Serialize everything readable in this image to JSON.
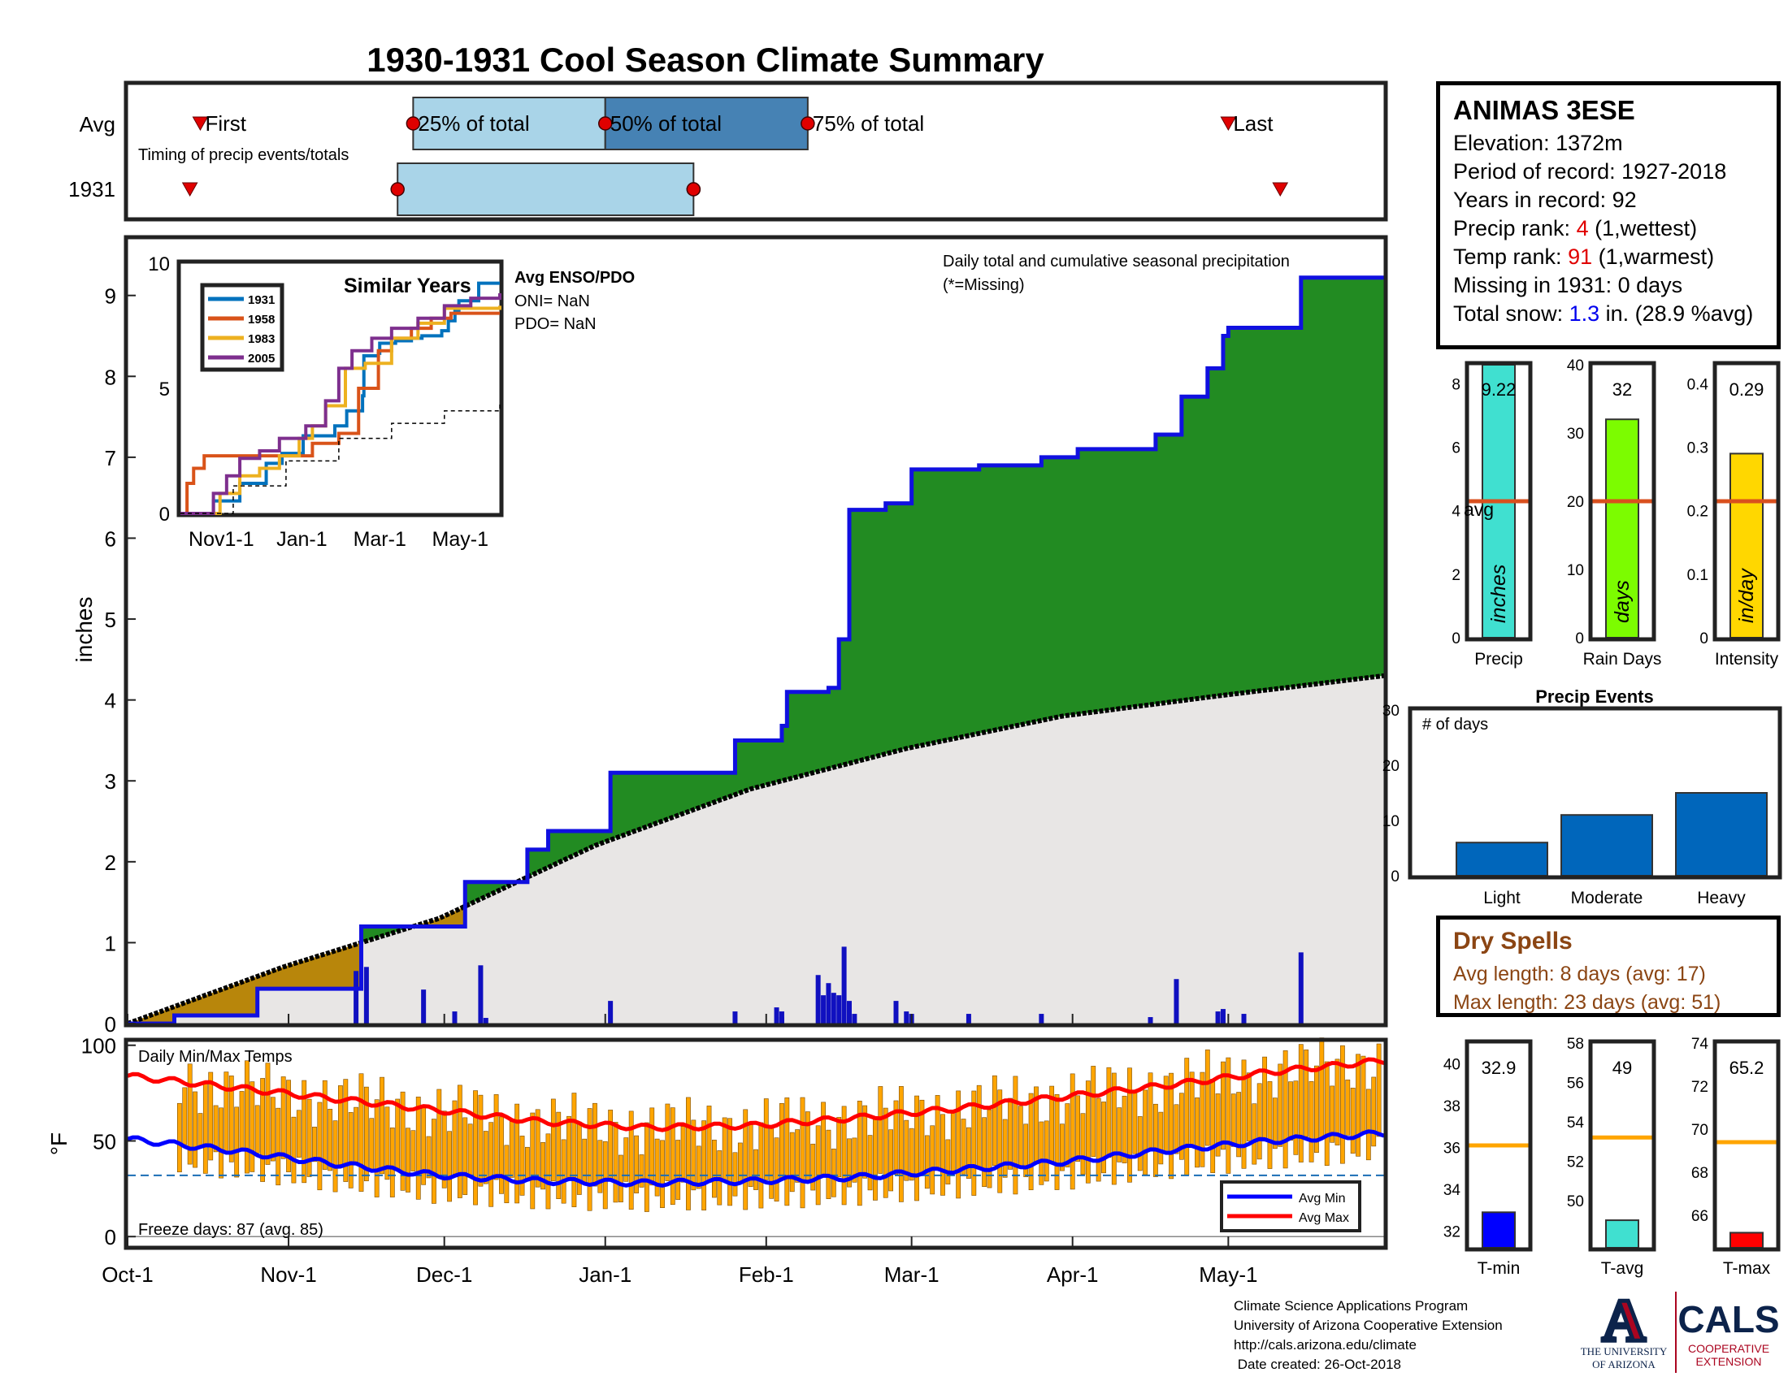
{
  "title": "1930-1931 Cool Season Climate Summary",
  "timing": {
    "row_labels": [
      "Avg",
      "1931"
    ],
    "caption": "Timing of precip events/totals",
    "labels": {
      "first": "First",
      "q25": "25% of total",
      "q50": "50% of total",
      "q75": "75% of total",
      "last": "Last"
    },
    "avg_days": {
      "first": 14,
      "q25": 55,
      "q50": 92,
      "q75": 131,
      "last": 212
    },
    "year_days": {
      "first": 12,
      "q25": 52,
      "q50": 109,
      "q75": 109,
      "last": 222
    }
  },
  "station": {
    "name": "ANIMAS 3ESE",
    "elevation": "Elevation: 1372m",
    "period": "Period of record: 1927-2018",
    "years": "Years in record: 92",
    "precip_rank_label": "Precip rank: ",
    "precip_rank": "4",
    "precip_rank_note": " (1,wettest)",
    "temp_rank_label": "Temp rank: ",
    "temp_rank": "91",
    "temp_rank_note": " (1,warmest)",
    "missing": "Missing in 1931: 0 days",
    "snow_label": "Total snow: ",
    "snow_value": "1.3",
    "snow_note": " in. (28.9 %avg)"
  },
  "main_chart": {
    "ylabel": "inches",
    "caption": "Daily total and cumulative seasonal precipitation",
    "missing_note": "(*=Missing)",
    "x_ticks": [
      "Oct-1",
      "Nov-1",
      "Dec-1",
      "Jan-1",
      "Feb-1",
      "Mar-1",
      "Apr-1",
      "May-1"
    ],
    "x_tick_days": [
      0,
      31,
      61,
      92,
      123,
      151,
      182,
      212
    ],
    "y_ticks": [
      0,
      1,
      2,
      3,
      4,
      5,
      6,
      7,
      8,
      9
    ],
    "ylim": [
      0,
      9.7
    ],
    "days_total": 242
  },
  "chart_data": [
    {
      "type": "area",
      "title": "",
      "series": [
        {
          "name": "",
          "x_days": [
            0,
            8,
            9,
            24,
            25,
            44,
            45,
            64,
            65,
            76,
            77,
            80,
            81,
            92,
            93,
            116,
            117,
            125,
            126,
            126,
            127,
            134,
            135,
            136,
            137,
            138,
            139,
            145,
            146,
            150,
            151,
            163,
            164,
            175,
            176,
            182,
            183,
            197,
            198,
            202,
            203,
            207,
            208,
            210,
            211,
            211,
            212,
            225,
            226,
            242
          ],
          "values": [
            0,
            0,
            0.1,
            0.1,
            0.43,
            0.43,
            1.2,
            1.2,
            1.75,
            1.75,
            2.15,
            2.15,
            2.38,
            2.38,
            3.1,
            3.1,
            3.5,
            3.5,
            3.68,
            3.68,
            4.1,
            4.1,
            4.15,
            4.15,
            4.75,
            4.75,
            6.35,
            6.35,
            6.43,
            6.43,
            6.85,
            6.85,
            6.9,
            6.9,
            7.0,
            7.0,
            7.1,
            7.1,
            7.28,
            7.28,
            7.75,
            7.75,
            8.1,
            8.1,
            8.5,
            8.5,
            8.6,
            8.6,
            9.22,
            9.22
          ]
        },
        {
          "name": "",
          "x_days": [
            0,
            30,
            60,
            90,
            120,
            150,
            180,
            210,
            242
          ],
          "values": [
            0,
            0.7,
            1.3,
            2.2,
            2.9,
            3.4,
            3.8,
            4.05,
            4.3
          ]
        }
      ],
      "daily_precip": {
        "x_days": [
          44,
          46,
          57,
          63,
          68,
          69,
          93,
          117,
          125,
          126,
          126,
          133,
          134,
          135,
          136,
          137,
          138,
          139,
          140,
          148,
          150,
          151,
          162,
          176,
          197,
          202,
          210,
          211,
          215,
          226
        ],
        "values": [
          0.65,
          0.7,
          0.42,
          0.15,
          0.72,
          0.07,
          0.28,
          0.15,
          0.2,
          0.15,
          0.08,
          0.6,
          0.35,
          0.5,
          0.38,
          0.35,
          0.95,
          0.28,
          0.12,
          0.28,
          0.15,
          0.12,
          0.12,
          0.12,
          0.08,
          0.55,
          0.15,
          0.18,
          0.12,
          0.88
        ]
      }
    },
    {
      "type": "line",
      "title": "Similar Years",
      "x_ticks": [
        "Nov1-1",
        "Jan-1",
        "Mar-1",
        "May-1"
      ],
      "x_tick_days": [
        31,
        92,
        151,
        212
      ],
      "y_ticks": [
        0,
        5,
        10
      ],
      "ylim": [
        0,
        10
      ],
      "series": [
        {
          "name": "1931",
          "color": "#0072BD",
          "x_days": [
            0,
            24,
            25,
            44,
            45,
            64,
            65,
            76,
            77,
            93,
            117,
            126,
            138,
            139,
            150,
            151,
            163,
            175,
            183,
            198,
            203,
            208,
            211,
            226,
            242
          ],
          "values": [
            0,
            0,
            0.5,
            0.5,
            1.2,
            1.2,
            2.0,
            2.0,
            2.4,
            3.1,
            3.5,
            4.1,
            4.7,
            6.3,
            6.4,
            6.8,
            6.9,
            7.0,
            7.1,
            7.3,
            7.7,
            8.1,
            8.5,
            9.2,
            9.2
          ]
        },
        {
          "name": "1958",
          "color": "#D95319",
          "x_days": [
            0,
            5,
            10,
            18,
            40,
            70,
            100,
            120,
            135,
            150,
            160,
            175,
            190,
            205,
            242
          ],
          "values": [
            0,
            1.2,
            1.8,
            2.3,
            2.3,
            2.3,
            2.8,
            3.2,
            5.0,
            6.5,
            7.0,
            7.4,
            7.8,
            8.0,
            8.0
          ]
        },
        {
          "name": "1983",
          "color": "#EDB120",
          "x_days": [
            0,
            20,
            30,
            45,
            60,
            75,
            90,
            100,
            110,
            125,
            140,
            160,
            180,
            200,
            242
          ],
          "values": [
            0,
            0,
            0.8,
            1.5,
            1.8,
            2.3,
            3.0,
            3.5,
            4.3,
            5.8,
            6.0,
            7.0,
            7.6,
            8.2,
            8.3
          ]
        },
        {
          "name": "2005",
          "color": "#7E2F8E",
          "x_days": [
            0,
            12,
            25,
            35,
            45,
            60,
            75,
            95,
            110,
            120,
            130,
            145,
            160,
            180,
            200,
            220,
            242
          ],
          "values": [
            0,
            0,
            0.8,
            1.5,
            2.2,
            2.5,
            3.0,
            3.5,
            4.5,
            5.8,
            6.5,
            7.0,
            7.4,
            7.8,
            8.3,
            8.6,
            8.8
          ]
        },
        {
          "name": "",
          "color": "#000000",
          "x_days": [
            0,
            40,
            80,
            120,
            160,
            200,
            242
          ],
          "values": [
            0,
            1.1,
            2.1,
            3.0,
            3.6,
            4.1,
            4.4
          ]
        }
      ]
    },
    {
      "type": "bar",
      "title": "",
      "categories": [
        "Precip",
        "Rain Days",
        "Intensity"
      ],
      "values": [
        9.22,
        32,
        0.29
      ],
      "value_labels": [
        "9.22",
        "32",
        "0.29"
      ],
      "averages": [
        4.3,
        20,
        0.215
      ],
      "units": [
        "inches",
        "days",
        "in/day"
      ],
      "ylims": [
        [
          0,
          8.6
        ],
        [
          0,
          40
        ],
        [
          0,
          0.43
        ]
      ],
      "y_ticks": [
        [
          0,
          2,
          4,
          6,
          8
        ],
        [
          0,
          10,
          20,
          30,
          40
        ],
        [
          0,
          0.1,
          0.2,
          0.3,
          0.4
        ]
      ],
      "y_tick_labels": [
        [
          "0",
          "2",
          "4",
          "6",
          "8"
        ],
        [
          "0",
          "10",
          "20",
          "30",
          "40"
        ],
        [
          "0",
          "0.1",
          "0.2",
          "0.3",
          "0.4"
        ]
      ],
      "colors": [
        "#40E0D0",
        "#7CFC00",
        "#FFD700"
      ],
      "avg_label": "avg"
    },
    {
      "type": "bar",
      "title": "Precip Events",
      "ylabel": "# of days",
      "categories": [
        "Light",
        "Moderate",
        "Heavy"
      ],
      "values": [
        6,
        11,
        15
      ],
      "ylim": [
        0,
        30
      ],
      "y_ticks": [
        0,
        10,
        20,
        30
      ]
    },
    {
      "type": "bar",
      "title": "Daily Min/Max Temps",
      "ylabel": "°F",
      "ylim": [
        -5,
        102
      ],
      "y_ticks": [
        0,
        50,
        100
      ],
      "freeze_line": 32,
      "legend": [
        "Avg Min",
        "Avg Max"
      ],
      "avg_max": {
        "x_days": [
          0,
          20,
          40,
          60,
          80,
          100,
          120,
          140,
          160,
          180,
          200,
          220,
          242
        ],
        "values": [
          84,
          78,
          72,
          66,
          60,
          57,
          58,
          62,
          67,
          73,
          79,
          86,
          92
        ]
      },
      "avg_min": {
        "x_days": [
          0,
          20,
          40,
          60,
          80,
          100,
          120,
          140,
          160,
          180,
          200,
          220,
          242
        ],
        "values": [
          51,
          45,
          38,
          32,
          29,
          28,
          29,
          31,
          35,
          39,
          45,
          50,
          54
        ]
      }
    },
    {
      "type": "bar",
      "title": "",
      "categories": [
        "T-min",
        "T-avg",
        "T-max"
      ],
      "values": [
        32.9,
        49,
        65.2
      ],
      "value_labels": [
        "32.9",
        "49",
        "65.2"
      ],
      "averages": [
        36.1,
        53.2,
        69.4
      ],
      "ylims": [
        [
          31.2,
          41
        ],
        [
          47.6,
          58
        ],
        [
          64.5,
          74
        ]
      ],
      "y_ticks": [
        [
          32,
          34,
          36,
          38,
          40
        ],
        [
          50,
          52,
          54,
          56,
          58
        ],
        [
          66,
          68,
          70,
          72,
          74
        ]
      ],
      "colors": [
        "#0000FF",
        "#40E0D0",
        "#FF0000"
      ]
    }
  ],
  "temps_freeze": "Freeze days: 87 (avg. 85)",
  "dry_spells": {
    "title": "Dry Spells",
    "avg": "Avg length: 8 days (avg: 17)",
    "max": "Max length: 23 days (avg: 51)"
  },
  "footer": {
    "line1": "Climate Science Applications Program",
    "line2": "University of Arizona Cooperative Extension",
    "line3": "http://cals.arizona.edu/climate",
    "line4": " Date created: 26-Oct-2018"
  },
  "logos": {
    "ua_letter": "A",
    "ua_line1": "THE UNIVERSITY",
    "ua_line2": "OF ARIZONA",
    "cals": "CALS",
    "cals_line1": "COOPERATIVE",
    "cals_line2": "EXTENSION"
  },
  "colors": {
    "title": "#0a4d8f",
    "green": "#228B22",
    "avg_fill": "#e8e6e5",
    "brown": "#B8860B",
    "light_blue": "#a9d4e8",
    "mid_blue": "#4682b4",
    "bar_blue": "#0066bb",
    "orange": "#FFA500"
  }
}
